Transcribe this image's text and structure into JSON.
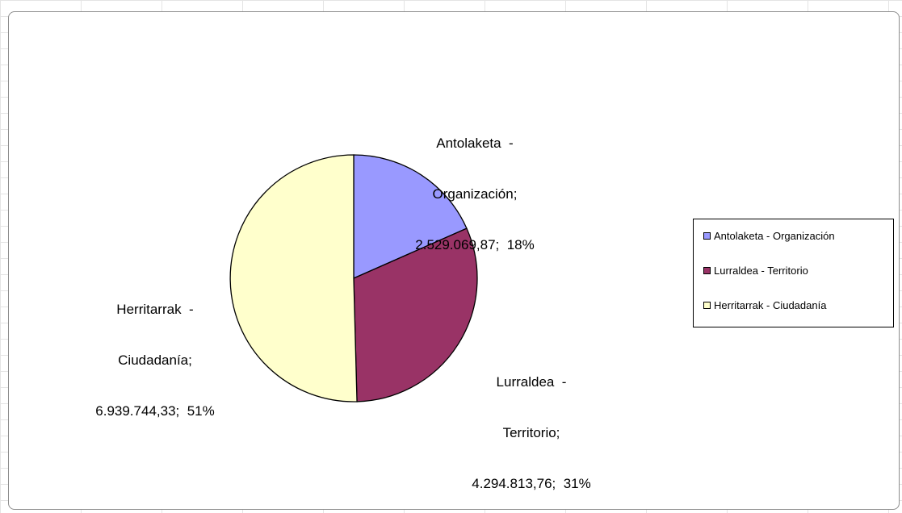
{
  "chart_data": {
    "type": "pie",
    "title": "",
    "slices": [
      {
        "name": "Antolaketa - Organización",
        "value": 2529069.87,
        "value_label": "2.529.069,87",
        "percent_label": "18%",
        "color": "#9999ff"
      },
      {
        "name": "Lurraldea - Territorio",
        "value": 4294813.76,
        "value_label": "4.294.813,76",
        "percent_label": "31%",
        "color": "#993366"
      },
      {
        "name": "Herritarrak - Ciudadanía",
        "value": 6939744.33,
        "value_label": "6.939.744,33",
        "percent_label": "51%",
        "color": "#ffffcc"
      }
    ],
    "start_angle": "12 o'clock",
    "direction": "clockwise",
    "legend_position": "right"
  },
  "labels": [
    {
      "line1": "Antolaketa  -",
      "line2": "Organización;",
      "line3": "2.529.069,87;  18%"
    },
    {
      "line1": "Lurraldea  -",
      "line2": "Territorio;",
      "line3": "4.294.813,76;  31%"
    },
    {
      "line1": "Herritarrak  -",
      "line2": "Ciudadanía;",
      "line3": "6.939.744,33;  51%"
    }
  ],
  "legend": {
    "items": [
      {
        "label": "Antolaketa - Organización"
      },
      {
        "label": "Lurraldea - Territorio"
      },
      {
        "label": "Herritarrak - Ciudadanía"
      }
    ]
  }
}
